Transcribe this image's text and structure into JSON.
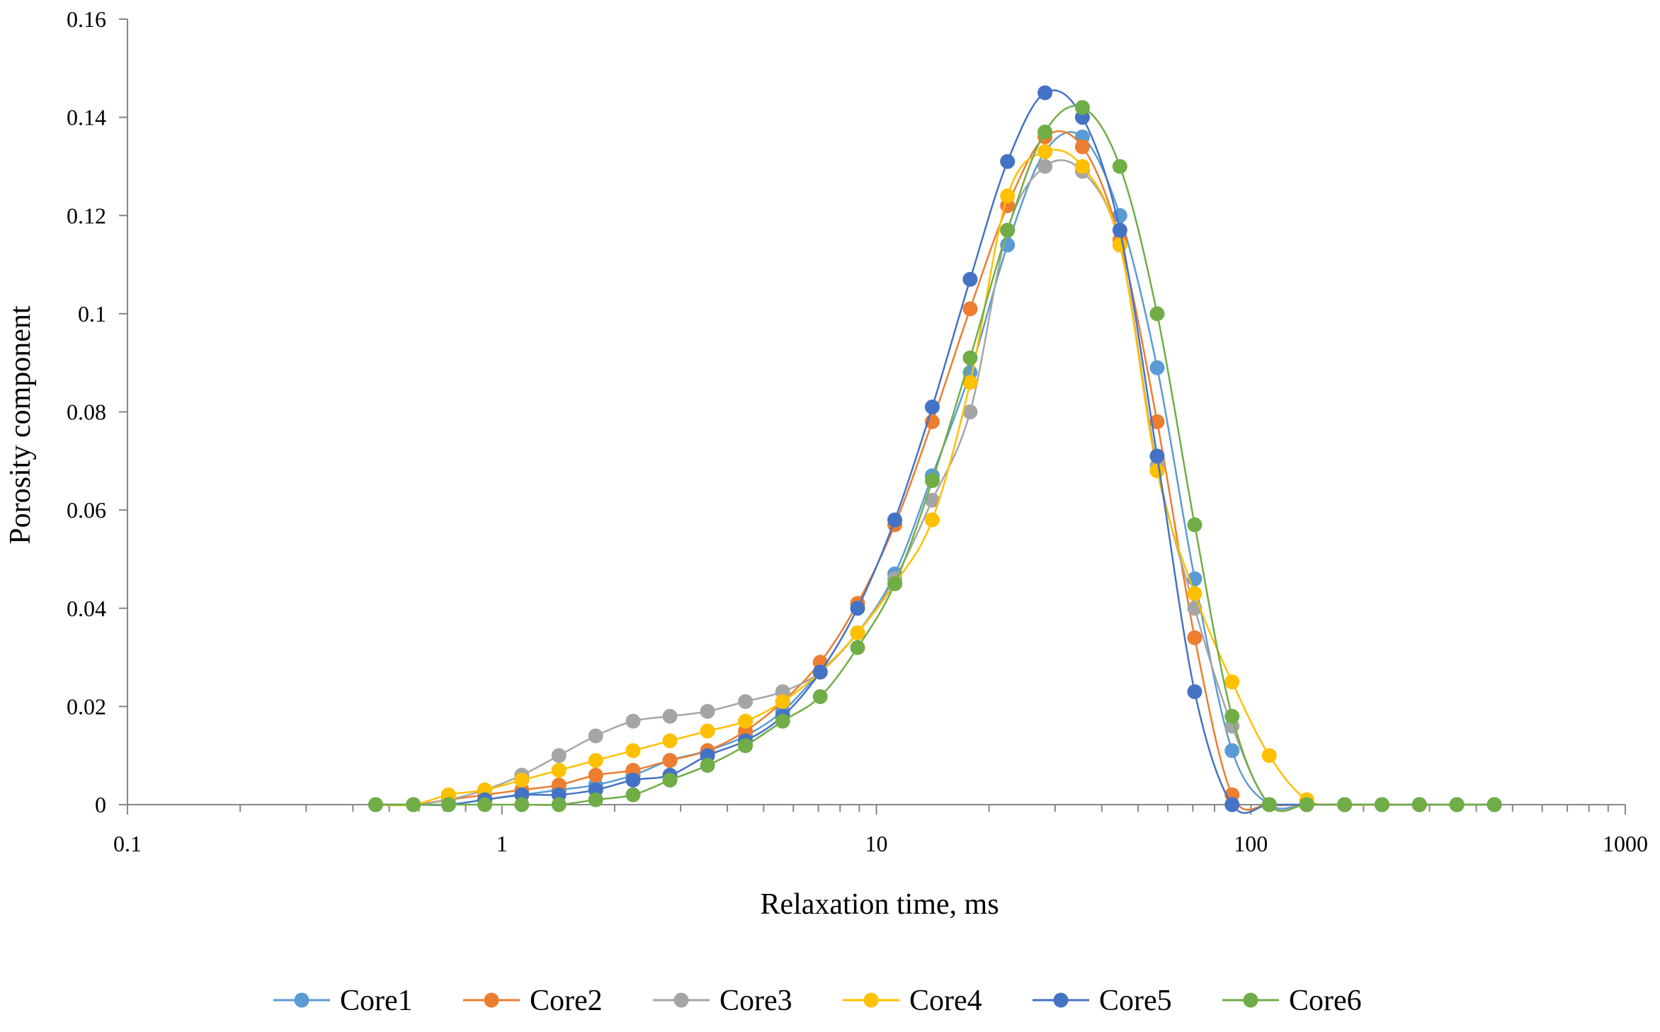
{
  "chart_data": {
    "type": "scatter",
    "title": "",
    "xlabel": "Relaxation time, ms",
    "ylabel": "Porosity component",
    "xscale": "log",
    "xlim": [
      0.1,
      1000
    ],
    "ylim": [
      0,
      0.16
    ],
    "xticks": [
      "0.1",
      "1",
      "10",
      "100",
      "1000"
    ],
    "yticks": [
      "0",
      "0.02",
      "0.04",
      "0.06",
      "0.08",
      "0.1",
      "0.12",
      "0.14",
      "0.16"
    ],
    "x": [
      0.46,
      0.58,
      0.72,
      0.9,
      1.13,
      1.42,
      1.78,
      2.24,
      2.81,
      3.54,
      4.47,
      5.62,
      7.08,
      8.91,
      11.2,
      14.1,
      17.8,
      22.4,
      28.2,
      35.5,
      44.7,
      56.2,
      70.8,
      89.1,
      112,
      141,
      178,
      224,
      282,
      355,
      447
    ],
    "series": [
      {
        "name": "Core1",
        "color": "#5B9BD5",
        "values": [
          0,
          0,
          0,
          0.001,
          0.002,
          0.003,
          0.004,
          0.006,
          0.009,
          0.011,
          0.014,
          0.019,
          0.027,
          0.035,
          0.047,
          0.067,
          0.088,
          0.114,
          0.133,
          0.136,
          0.12,
          0.089,
          0.046,
          0.011,
          0,
          0,
          0,
          0,
          0,
          0,
          0
        ]
      },
      {
        "name": "Core2",
        "color": "#ED7D31",
        "values": [
          0,
          0,
          0.001,
          0.002,
          0.003,
          0.004,
          0.006,
          0.007,
          0.009,
          0.011,
          0.015,
          0.021,
          0.029,
          0.041,
          0.057,
          0.078,
          0.101,
          0.122,
          0.136,
          0.134,
          0.115,
          0.078,
          0.034,
          0.002,
          0,
          0,
          0,
          0,
          0,
          0,
          0
        ]
      },
      {
        "name": "Core3",
        "color": "#A5A5A5",
        "values": [
          0,
          0,
          0.001,
          0.003,
          0.006,
          0.01,
          0.014,
          0.017,
          0.018,
          0.019,
          0.021,
          0.023,
          0.027,
          0.035,
          0.046,
          0.062,
          0.08,
          0.117,
          0.13,
          0.129,
          0.114,
          0.069,
          0.04,
          0.016,
          0,
          0,
          0,
          0,
          0,
          0,
          0
        ]
      },
      {
        "name": "Core4",
        "color": "#FFC000",
        "values": [
          0,
          0,
          0.002,
          0.003,
          0.005,
          0.007,
          0.009,
          0.011,
          0.013,
          0.015,
          0.017,
          0.021,
          0.027,
          0.035,
          0.045,
          0.058,
          0.086,
          0.124,
          0.133,
          0.13,
          0.114,
          0.068,
          0.043,
          0.025,
          0.01,
          0.001,
          0,
          0,
          0,
          0,
          0
        ]
      },
      {
        "name": "Core5",
        "color": "#4472C4",
        "values": [
          0,
          0,
          0,
          0.001,
          0.002,
          0.002,
          0.003,
          0.005,
          0.006,
          0.01,
          0.013,
          0.018,
          0.027,
          0.04,
          0.058,
          0.081,
          0.107,
          0.131,
          0.145,
          0.14,
          0.117,
          0.071,
          0.023,
          0,
          0,
          0,
          0,
          0,
          0,
          0,
          0
        ]
      },
      {
        "name": "Core6",
        "color": "#70AD47",
        "values": [
          0,
          0,
          0,
          0,
          0,
          0,
          0.001,
          0.002,
          0.005,
          0.008,
          0.012,
          0.017,
          0.022,
          0.032,
          0.045,
          0.066,
          0.091,
          0.117,
          0.137,
          0.142,
          0.13,
          0.1,
          0.057,
          0.018,
          0,
          0,
          0,
          0,
          0,
          0,
          0
        ]
      }
    ]
  }
}
